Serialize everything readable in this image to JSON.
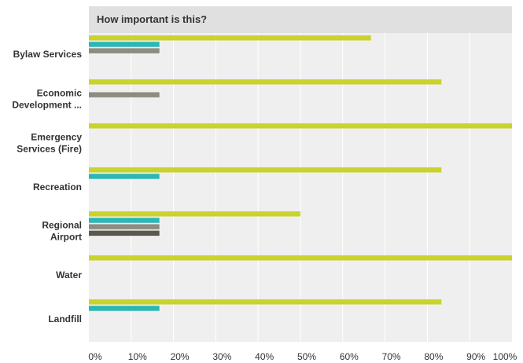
{
  "chart_data": {
    "type": "bar",
    "orientation": "horizontal",
    "title": "How important is this?",
    "categories": [
      [
        "Bylaw Services"
      ],
      [
        "Economic",
        "Development ..."
      ],
      [
        "Emergency",
        "Services (Fire)"
      ],
      [
        "Recreation"
      ],
      [
        "Regional",
        "Airport"
      ],
      [
        "Water"
      ],
      [
        "Landfill"
      ]
    ],
    "series": [
      {
        "color": "#c8d42b",
        "values": [
          66.67,
          83.33,
          100,
          83.33,
          50,
          100,
          83.33
        ]
      },
      {
        "color": "#2eb6b6",
        "values": [
          16.67,
          0,
          0,
          16.67,
          16.67,
          0,
          16.67
        ]
      },
      {
        "color": "#8c8c82",
        "values": [
          16.67,
          16.67,
          0,
          0,
          16.67,
          0,
          0
        ]
      },
      {
        "color": "#5a5a4c",
        "values": [
          0,
          0,
          0,
          0,
          16.67,
          0,
          0
        ]
      }
    ],
    "xlim": [
      0,
      100
    ],
    "x_ticks": [
      "0%",
      "10%",
      "20%",
      "30%",
      "40%",
      "50%",
      "60%",
      "70%",
      "80%",
      "90%",
      "100%"
    ],
    "grid": true,
    "background_color": "#efefef",
    "header_color": "#e0e0e0"
  }
}
